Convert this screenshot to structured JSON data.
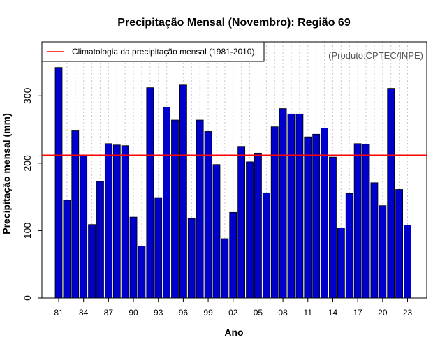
{
  "chart_data": {
    "type": "bar",
    "title": "Precipitação Mensal (Novembro): Região 69",
    "xlabel": "Ano",
    "ylabel": "Precipitação mensal (mm)",
    "source": "(Produto:CPTEC/INPE)",
    "ylim": [
      0,
      380
    ],
    "yticks": [
      0,
      100,
      200,
      300
    ],
    "years": [
      1981,
      1982,
      1983,
      1984,
      1985,
      1986,
      1987,
      1988,
      1989,
      1990,
      1991,
      1992,
      1993,
      1994,
      1995,
      1996,
      1997,
      1998,
      1999,
      2000,
      2001,
      2002,
      2003,
      2004,
      2005,
      2006,
      2007,
      2008,
      2009,
      2010,
      2011,
      2012,
      2013,
      2014,
      2015,
      2016,
      2017,
      2018,
      2019,
      2020,
      2021,
      2022,
      2023
    ],
    "values": [
      342,
      145,
      249,
      211,
      109,
      173,
      229,
      227,
      226,
      120,
      77,
      312,
      149,
      283,
      264,
      316,
      118,
      264,
      247,
      198,
      88,
      127,
      225,
      202,
      215,
      156,
      254,
      281,
      273,
      273,
      239,
      243,
      252,
      209,
      104,
      155,
      229,
      228,
      171,
      137,
      311,
      161,
      108
    ],
    "xtick_labels": [
      "81",
      "84",
      "87",
      "90",
      "93",
      "96",
      "99",
      "02",
      "05",
      "08",
      "11",
      "14",
      "17",
      "20",
      "23"
    ],
    "bar_color": "#0000CD",
    "climatology": {
      "label": "Climatologia da precipitação mensal (1981-2010)",
      "value": 212,
      "color": "#FF0000"
    },
    "legend_position": "top-left"
  }
}
